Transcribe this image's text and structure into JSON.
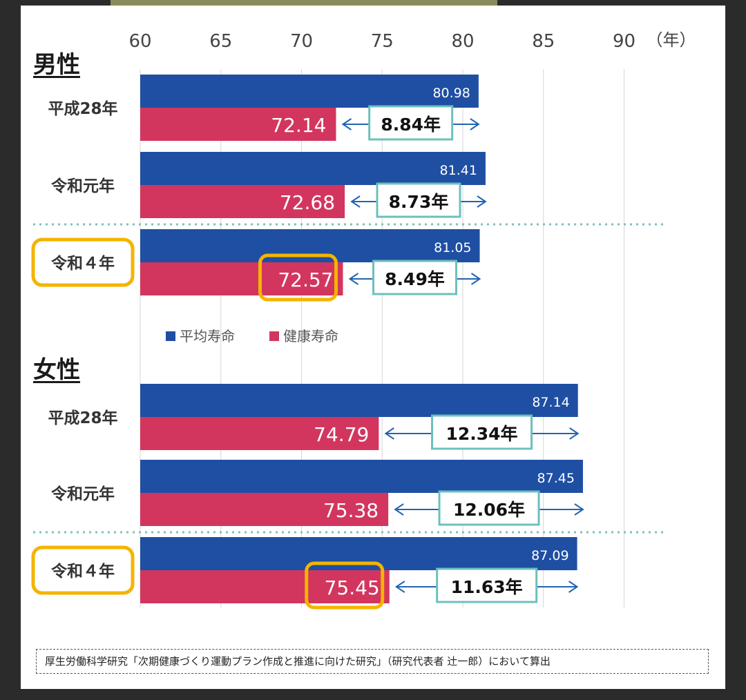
{
  "footnote": "厚生労働科学研究「次期健康づくり運動プラン作成と推進に向けた研究」（研究代表者 辻一郎）において算出",
  "colors": {
    "avg": "#1f4fa3",
    "healthy": "#d2365f",
    "gap_border": "#6cc0bc",
    "highlight": "#f4b400",
    "arrow": "#2263b0",
    "divider": "#7fbfbf"
  },
  "chart_data": {
    "type": "bar",
    "orientation": "horizontal",
    "xlim": [
      60,
      90
    ],
    "x_ticks": [
      "60",
      "65",
      "70",
      "75",
      "80",
      "85",
      "90"
    ],
    "x_unit": "（年）",
    "grid": true,
    "legend": {
      "position": "between-panels",
      "items": [
        {
          "label": "平均寿命",
          "color": "#1f4fa3"
        },
        {
          "label": "健康寿命",
          "color": "#d2365f"
        }
      ]
    },
    "panels": [
      {
        "title": "男性",
        "groups": [
          {
            "label": "平成28年",
            "average": 80.98,
            "healthy": 72.14,
            "gap": "8.84年",
            "highlight": false
          },
          {
            "label": "令和元年",
            "average": 81.41,
            "healthy": 72.68,
            "gap": "8.73年",
            "highlight": false
          },
          {
            "label": "令和４年",
            "average": 81.05,
            "healthy": 72.57,
            "gap": "8.49年",
            "highlight": true
          }
        ]
      },
      {
        "title": "女性",
        "groups": [
          {
            "label": "平成28年",
            "average": 87.14,
            "healthy": 74.79,
            "gap": "12.34年",
            "highlight": false
          },
          {
            "label": "令和元年",
            "average": 87.45,
            "healthy": 75.38,
            "gap": "12.06年",
            "highlight": false
          },
          {
            "label": "令和４年",
            "average": 87.09,
            "healthy": 75.45,
            "gap": "11.63年",
            "highlight": true
          }
        ]
      }
    ]
  }
}
